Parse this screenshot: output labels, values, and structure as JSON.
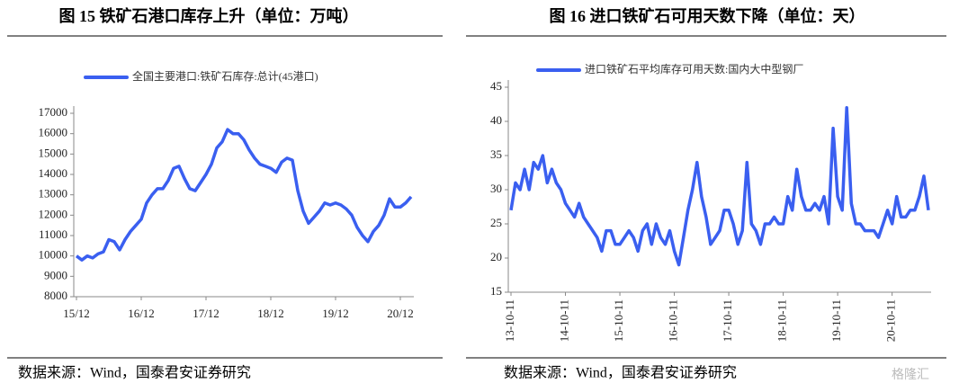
{
  "chart_data": [
    {
      "type": "line",
      "title": "图 15 铁矿石港口库存上升（单位：万吨）",
      "source": "数据来源：Wind，国泰君安证券研究",
      "categories": [
        "15/12",
        null,
        null,
        null,
        null,
        null,
        null,
        null,
        null,
        null,
        null,
        null,
        "16/12",
        null,
        null,
        null,
        null,
        null,
        null,
        null,
        null,
        null,
        null,
        null,
        "17/12",
        null,
        null,
        null,
        null,
        null,
        null,
        null,
        null,
        null,
        null,
        null,
        "18/12",
        null,
        null,
        null,
        null,
        null,
        null,
        null,
        null,
        null,
        null,
        null,
        "19/12",
        null,
        null,
        null,
        null,
        null,
        null,
        null,
        null,
        null,
        null,
        null,
        "20/12",
        null,
        null
      ],
      "series": [
        {
          "name": "全国主要港口:铁矿石库存:总计(45港口)",
          "color": "#3a5ff0",
          "values": [
            10000,
            9800,
            10000,
            9900,
            10100,
            10200,
            10800,
            10700,
            10300,
            10800,
            11200,
            11500,
            11800,
            12600,
            13000,
            13300,
            13300,
            13700,
            14300,
            14400,
            13800,
            13300,
            13200,
            13600,
            14000,
            14500,
            15300,
            15600,
            16200,
            16000,
            16000,
            15700,
            15200,
            14800,
            14500,
            14400,
            14300,
            14100,
            14600,
            14800,
            14700,
            13200,
            12200,
            11600,
            11900,
            12200,
            12600,
            12500,
            12600,
            12500,
            12300,
            12000,
            11400,
            11000,
            10700,
            11200,
            11500,
            12000,
            12800,
            12400,
            12400,
            12600,
            12900
          ]
        }
      ],
      "ylim": [
        8000,
        17000
      ],
      "yticks": [
        8000,
        9000,
        10000,
        11000,
        12000,
        13000,
        14000,
        15000,
        16000,
        17000
      ]
    },
    {
      "type": "line",
      "title": "图 16 进口铁矿石可用天数下降（单位：天）",
      "source": "数据来源：Wind，国泰君安证券研究",
      "categories": [
        "13-10-11",
        null,
        null,
        null,
        null,
        null,
        null,
        null,
        null,
        null,
        null,
        null,
        "14-10-11",
        null,
        null,
        null,
        null,
        null,
        null,
        null,
        null,
        null,
        null,
        null,
        "15-10-11",
        null,
        null,
        null,
        null,
        null,
        null,
        null,
        null,
        null,
        null,
        null,
        "16-10-11",
        null,
        null,
        null,
        null,
        null,
        null,
        null,
        null,
        null,
        null,
        null,
        "17-10-11",
        null,
        null,
        null,
        null,
        null,
        null,
        null,
        null,
        null,
        null,
        null,
        "18-10-11",
        null,
        null,
        null,
        null,
        null,
        null,
        null,
        null,
        null,
        null,
        null,
        "19-10-11",
        null,
        null,
        null,
        null,
        null,
        null,
        null,
        null,
        null,
        null,
        null,
        "20-10-11",
        null,
        null,
        null,
        null,
        null,
        null,
        null,
        null
      ],
      "series": [
        {
          "name": "进口铁矿石平均库存可用天数:国内大中型钢厂",
          "color": "#3a5ff0",
          "values": [
            27,
            31,
            30,
            33,
            30,
            34,
            33,
            35,
            31,
            33,
            31,
            30,
            28,
            27,
            26,
            28,
            26,
            25,
            24,
            23,
            21,
            24,
            24,
            22,
            22,
            23,
            24,
            23,
            21,
            24,
            25,
            22,
            25,
            23,
            22,
            24,
            21,
            19,
            23,
            27,
            30,
            34,
            29,
            26,
            22,
            23,
            24,
            27,
            27,
            25,
            22,
            24,
            34,
            25,
            24,
            22,
            25,
            25,
            26,
            25,
            25,
            29,
            27,
            33,
            29,
            27,
            27,
            28,
            27,
            29,
            25,
            39,
            29,
            27,
            42,
            28,
            25,
            25,
            24,
            24,
            24,
            23,
            25,
            27,
            25,
            29,
            26,
            26,
            27,
            27,
            29,
            32,
            27
          ]
        }
      ],
      "ylim": [
        15,
        45
      ],
      "yticks": [
        15,
        20,
        25,
        30,
        35,
        40,
        45
      ]
    }
  ],
  "watermark": "格隆汇"
}
